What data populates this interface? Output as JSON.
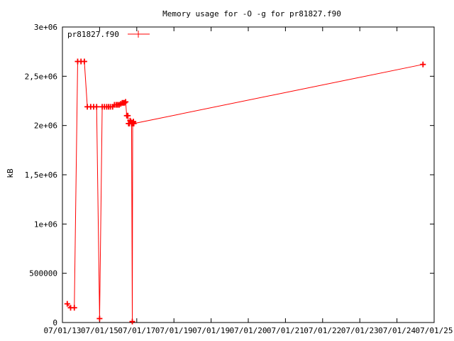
{
  "chart_data": {
    "type": "line",
    "title": "Memory usage for -O -g for pr81827.f90",
    "xlabel": "",
    "ylabel": "kB",
    "ylim": [
      0,
      3000000
    ],
    "grid": false,
    "legend": "top-left",
    "y_ticks": [
      0,
      500000,
      1000000,
      1500000,
      2000000,
      2500000,
      3000000
    ],
    "y_tick_labels": [
      "0",
      "500000",
      "1e+06",
      "1,5e+06",
      "2e+06",
      "2,5e+06",
      "3e+06"
    ],
    "x_ticks": [
      0,
      1,
      2,
      3,
      4,
      5,
      6,
      7,
      8,
      9,
      10
    ],
    "x_tick_labels": [
      "07/01/13",
      "07/01/15",
      "07/01/17",
      "07/01/19",
      "07/01/19",
      "07/01/20",
      "07/01/21",
      "07/01/22",
      "07/01/23",
      "07/01/24",
      "07/01/25"
    ],
    "xlim": [
      0,
      10
    ],
    "colors": {
      "series": "#ff0000",
      "axis": "#000000",
      "background": "#ffffff"
    },
    "series": [
      {
        "name": "pr81827.f90",
        "x": [
          0.13,
          0.22,
          0.32,
          0.41,
          0.5,
          0.59,
          0.67,
          0.76,
          0.84,
          0.92,
          1.0,
          1.07,
          1.13,
          1.19,
          1.24,
          1.29,
          1.35,
          1.4,
          1.45,
          1.49,
          1.53,
          1.57,
          1.61,
          1.64,
          1.67,
          1.7,
          1.73,
          1.76,
          1.78,
          1.8,
          1.82,
          1.84,
          1.86,
          1.88,
          1.89,
          1.9,
          1.91,
          1.92,
          9.7
        ],
        "y": [
          190000,
          150000,
          150000,
          2650000,
          2650000,
          2650000,
          2190000,
          2190000,
          2190000,
          2190000,
          40000,
          2190000,
          2190000,
          2190000,
          2190000,
          2190000,
          2190000,
          2210000,
          2210000,
          2210000,
          2210000,
          2220000,
          2230000,
          2230000,
          2230000,
          2240000,
          2100000,
          2100000,
          2020000,
          2020000,
          2050000,
          2040000,
          2020000,
          10000,
          2020000,
          2030000,
          2040000,
          2020000,
          2620000
        ]
      }
    ]
  }
}
